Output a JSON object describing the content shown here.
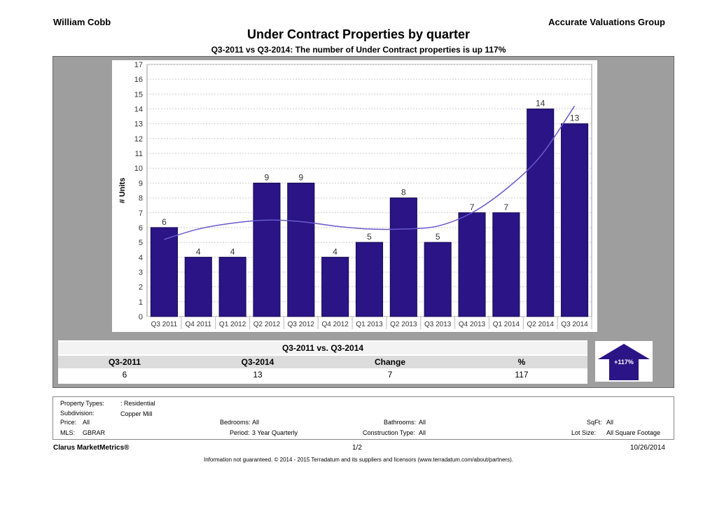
{
  "header": {
    "agent_name": "William  Cobb",
    "company": "Accurate Valuations Group",
    "title": "Under Contract Properties by quarter",
    "subtitle": "Q3-2011 vs Q3-2014: The number of Under Contract   properties is up 117%"
  },
  "chart_data": {
    "type": "bar",
    "categories": [
      "Q3 2011",
      "Q4 2011",
      "Q1 2012",
      "Q2 2012",
      "Q3 2012",
      "Q4 2012",
      "Q1 2013",
      "Q2 2013",
      "Q3 2013",
      "Q4 2013",
      "Q1 2014",
      "Q2 2014",
      "Q3 2014"
    ],
    "values": [
      6,
      4,
      4,
      9,
      9,
      4,
      5,
      8,
      5,
      7,
      7,
      14,
      13
    ],
    "trend": [
      5.2,
      5.9,
      6.3,
      6.5,
      6.4,
      6.1,
      5.9,
      5.9,
      6.1,
      7.0,
      8.6,
      10.8,
      14.2
    ],
    "ylabel": "# Units",
    "ylim": [
      0,
      17
    ],
    "yticks": [
      0,
      1,
      2,
      3,
      4,
      5,
      6,
      7,
      8,
      9,
      10,
      11,
      12,
      13,
      14,
      15,
      16,
      17
    ],
    "grid": true,
    "colors": {
      "bar": "#2a1486",
      "bar_edge": "#140a50",
      "trend": "#6a5acd"
    }
  },
  "summary": {
    "title": "Q3-2011 vs. Q3-2014",
    "headers": [
      "Q3-2011",
      "Q3-2014",
      "Change",
      "%"
    ],
    "values": [
      "6",
      "13",
      "7",
      "117"
    ],
    "badge": "+117%",
    "badge_color": "#2a1486"
  },
  "info": {
    "property_types_label": "Property Types:",
    "property_types_value": ": Residential",
    "subdivision_label": "Subdivision:",
    "subdivision_value": "Copper Mill",
    "price_label": "Price:",
    "price_value": "All",
    "mls_label": "MLS:",
    "mls_value": "GBRAR",
    "bedrooms_label": "Bedrooms:",
    "bedrooms_value": "All",
    "period_label": "Period:",
    "period_value": "3 Year Quarterly",
    "bathrooms_label": "Bathrooms:",
    "bathrooms_value": "All",
    "construction_label": "Construction Type:",
    "construction_value": "All",
    "sqft_label": "SqFt:",
    "sqft_value": "All",
    "lotsize_label": "Lot Size:",
    "lotsize_value": "All Square Footage"
  },
  "footer": {
    "brand": "Clarus MarketMetrics®",
    "page": "1/2",
    "date": "10/26/2014",
    "disclaimer": "Information not guaranteed. © 2014 - 2015 Terradatum and its suppliers and licensors (www.terradatum.com/about/partners)."
  }
}
